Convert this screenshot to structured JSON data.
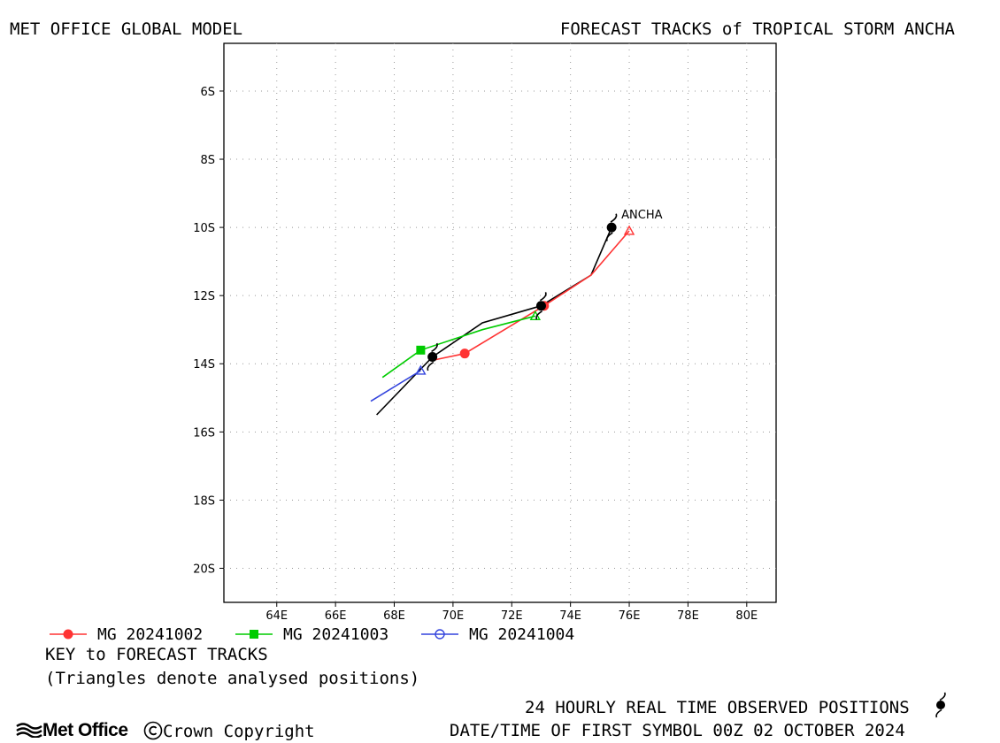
{
  "header": {
    "left_title": "MET OFFICE GLOBAL MODEL",
    "right_title": "FORECAST TRACKS of TROPICAL STORM ANCHA"
  },
  "storm_label": "ANCHA",
  "chart_data": {
    "type": "line",
    "xlim": [
      62.2,
      81.0
    ],
    "ylim": [
      -21.0,
      -4.6
    ],
    "x_ticks": [
      64,
      66,
      68,
      70,
      72,
      74,
      76,
      78,
      80
    ],
    "x_tick_labels": [
      "64E",
      "66E",
      "68E",
      "70E",
      "72E",
      "74E",
      "76E",
      "78E",
      "80E"
    ],
    "y_ticks": [
      -6,
      -8,
      -10,
      -12,
      -14,
      -16,
      -18,
      -20
    ],
    "y_tick_labels": [
      "6S",
      "8S",
      "10S",
      "12S",
      "14S",
      "16S",
      "18S",
      "20S"
    ],
    "grid": true,
    "observed_track": {
      "name": "24 HOURLY REAL TIME OBSERVED POSITIONS",
      "lon": [
        75.4,
        73.0,
        69.3
      ],
      "lat": [
        -10.0,
        -12.3,
        -13.8
      ],
      "color": "#000000"
    },
    "series": [
      {
        "name": "MG 20241002",
        "color": "#ff3333",
        "marker": "circle-filled",
        "lon": [
          76.0,
          74.7,
          73.1,
          70.4,
          69.3
        ],
        "lat": [
          -10.1,
          -11.4,
          -12.3,
          -13.7,
          -13.9
        ],
        "marker_lon": [
          73.1,
          70.4
        ],
        "marker_lat": [
          -12.3,
          -13.7
        ],
        "analysed_lon": 76.0,
        "analysed_lat": -10.1
      },
      {
        "name": "MG 20241003",
        "color": "#00cc00",
        "marker": "square-filled",
        "lon": [
          72.8,
          71.0,
          68.9,
          67.6
        ],
        "lat": [
          -12.6,
          -13.0,
          -13.6,
          -14.4
        ],
        "marker_lon": [
          68.9
        ],
        "marker_lat": [
          -13.6
        ],
        "analysed_lon": 72.8,
        "analysed_lat": -12.6
      },
      {
        "name": "MG 20241004",
        "color": "#3344dd",
        "marker": "circle-open",
        "lon": [
          68.9,
          67.2
        ],
        "lat": [
          -14.2,
          -15.1
        ],
        "marker_lon": [],
        "marker_lat": [],
        "analysed_lon": 68.9,
        "analysed_lat": -14.2
      }
    ],
    "black_forecast": {
      "lon": [
        75.4,
        74.7,
        73.0,
        71.0,
        69.3,
        67.4
      ],
      "lat": [
        -10.0,
        -11.4,
        -12.3,
        -12.8,
        -13.8,
        -15.5
      ]
    }
  },
  "key": {
    "title": "KEY to FORECAST TRACKS",
    "note": "(Triangles denote analysed positions)"
  },
  "footer": {
    "observed_label": "24 HOURLY REAL TIME OBSERVED POSITIONS",
    "datetime_label": "DATE/TIME OF FIRST SYMBOL 00Z 02 OCTOBER 2024",
    "logo_text": "Met Office",
    "copyright": "Crown Copyright"
  },
  "icons": {
    "cyclone": "tropical-storm-symbol-icon",
    "logo": "met-office-waves-icon",
    "copyright": "copyright-circle-icon"
  }
}
